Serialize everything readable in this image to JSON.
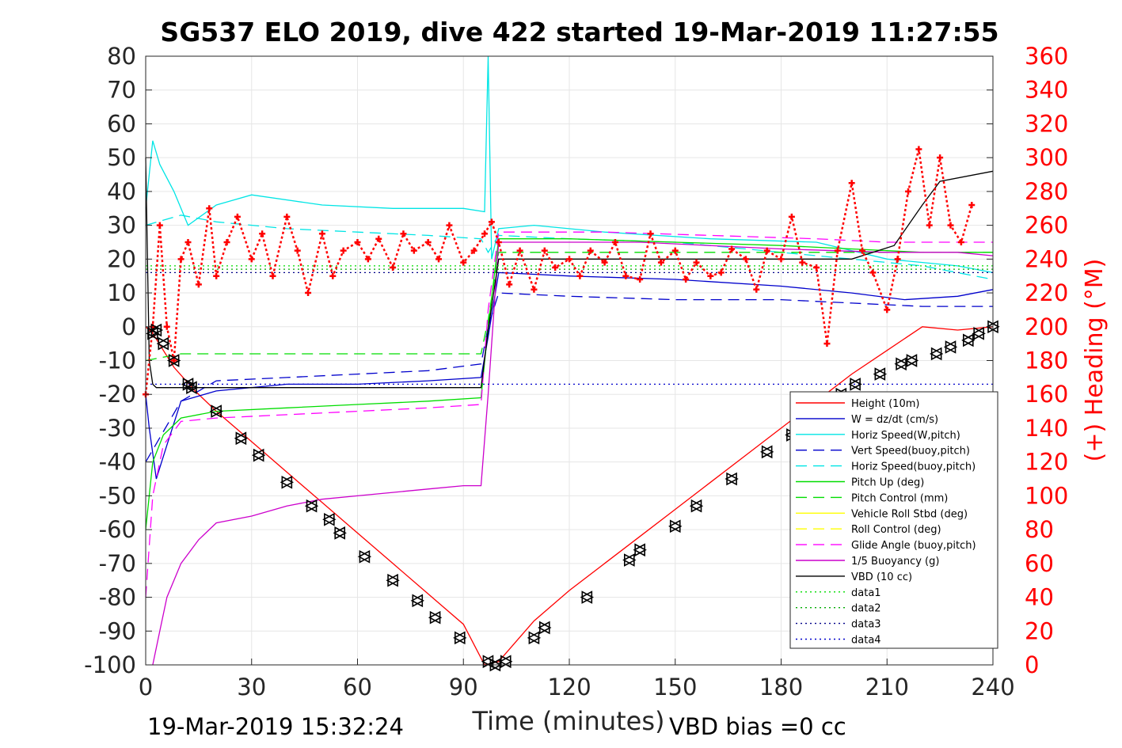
{
  "chart_data": {
    "type": "line",
    "title": "SG537 ELO 2019, dive 422 started 19-Mar-2019 11:27:55",
    "xlabel": "Time (minutes)",
    "ylabel": "",
    "y2label": "(+) Heading (°M)",
    "xlim": [
      0,
      240
    ],
    "ylim": [
      -100,
      80
    ],
    "y2lim": [
      0,
      360
    ],
    "xticks": [
      0,
      30,
      60,
      90,
      120,
      150,
      180,
      210,
      240
    ],
    "yticks": [
      -100,
      -90,
      -80,
      -70,
      -60,
      -50,
      -40,
      -30,
      -20,
      -10,
      0,
      10,
      20,
      30,
      40,
      50,
      60,
      70,
      80
    ],
    "y2ticks": [
      0,
      20,
      40,
      60,
      80,
      100,
      120,
      140,
      160,
      180,
      200,
      220,
      240,
      260,
      280,
      300,
      320,
      340,
      360
    ],
    "grid": true,
    "legend_position": "lower-right",
    "footer_left": "19-Mar-2019 15:32:24",
    "footer_right": "VBD bias =0 cc",
    "legend": [
      {
        "name": "Height (10m)",
        "color": "#ff0000",
        "dash": "solid"
      },
      {
        "name": "W = dz/dt (cm/s)",
        "color": "#0000cc",
        "dash": "solid"
      },
      {
        "name": "Horiz Speed(W,pitch)",
        "color": "#00e5e5",
        "dash": "solid"
      },
      {
        "name": "Vert Speed(buoy,pitch)",
        "color": "#0000cc",
        "dash": "dashed"
      },
      {
        "name": "Horiz Speed(buoy,pitch)",
        "color": "#00e5e5",
        "dash": "dashed"
      },
      {
        "name": "Pitch Up (deg)",
        "color": "#00dd00",
        "dash": "solid"
      },
      {
        "name": "Pitch Control (mm)",
        "color": "#00dd00",
        "dash": "dashed"
      },
      {
        "name": "Vehicle Roll Stbd (deg)",
        "color": "#ffff00",
        "dash": "solid"
      },
      {
        "name": "Roll Control (deg)",
        "color": "#ffff00",
        "dash": "dashed"
      },
      {
        "name": "Glide Angle (buoy,pitch)",
        "color": "#ff00ff",
        "dash": "dashed"
      },
      {
        "name": "1/5 Buoyancy (g)",
        "color": "#cc00cc",
        "dash": "solid"
      },
      {
        "name": "VBD (10 cc)",
        "color": "#000000",
        "dash": "solid"
      },
      {
        "name": "data1",
        "color": "#00dd00",
        "dash": "dotted"
      },
      {
        "name": "data2",
        "color": "#00aa00",
        "dash": "dotted"
      },
      {
        "name": "data3",
        "color": "#000088",
        "dash": "dotted"
      },
      {
        "name": "data4",
        "color": "#0000cc",
        "dash": "dotted"
      }
    ],
    "series": [
      {
        "name": "Height (10m)",
        "color": "#ff0000",
        "x": [
          0,
          2,
          8,
          14,
          20,
          30,
          40,
          50,
          60,
          70,
          80,
          90,
          96,
          100,
          110,
          120,
          130,
          140,
          150,
          160,
          170,
          180,
          190,
          200,
          210,
          220,
          230,
          240
        ],
        "y": [
          0,
          -2,
          -12,
          -19,
          -25,
          -34,
          -43,
          -52,
          -61,
          -70,
          -79,
          -88,
          -100,
          -99,
          -87,
          -78,
          -70,
          -62,
          -54,
          -46,
          -38,
          -30,
          -22,
          -14,
          -7,
          0,
          -1,
          0
        ]
      },
      {
        "name": "W = dz/dt (cm/s)",
        "color": "#0000cc",
        "x": [
          0,
          1,
          3,
          6,
          10,
          20,
          40,
          60,
          80,
          95,
          97,
          100,
          120,
          150,
          180,
          200,
          215,
          230,
          240
        ],
        "y": [
          -20,
          -30,
          -45,
          -35,
          -22,
          -19,
          -17,
          -17,
          -16,
          -15,
          -3,
          16,
          15,
          14,
          12,
          10,
          8,
          9,
          11
        ]
      },
      {
        "name": "Horiz Speed(W,pitch)",
        "color": "#00e5e5",
        "x": [
          0,
          2,
          4,
          8,
          12,
          20,
          30,
          50,
          70,
          90,
          96,
          97,
          98,
          100,
          110,
          130,
          160,
          190,
          210,
          230,
          240
        ],
        "y": [
          35,
          55,
          48,
          40,
          30,
          36,
          39,
          36,
          35,
          35,
          34,
          80,
          20,
          29,
          30,
          28,
          26,
          25,
          20,
          18,
          16
        ]
      },
      {
        "name": "Vert Speed(buoy,pitch)",
        "color": "#0000cc",
        "x": [
          0,
          10,
          20,
          40,
          60,
          80,
          95,
          97,
          100,
          120,
          150,
          180,
          200,
          220,
          240
        ],
        "y": [
          -40,
          -22,
          -16,
          -15,
          -14,
          -13,
          -11,
          0,
          10,
          9,
          8,
          8,
          7,
          6,
          6
        ]
      },
      {
        "name": "Horiz Speed(buoy,pitch)",
        "color": "#00e5e5",
        "x": [
          0,
          10,
          20,
          40,
          60,
          80,
          95,
          97,
          100,
          120,
          150,
          180,
          200,
          220,
          240
        ],
        "y": [
          30,
          33,
          31,
          29,
          28,
          27,
          26,
          22,
          27,
          26,
          25,
          22,
          20,
          18,
          14
        ]
      },
      {
        "name": "Pitch Up (deg)",
        "color": "#00dd00",
        "x": [
          0,
          2,
          5,
          10,
          20,
          40,
          60,
          80,
          95,
          97,
          100,
          120,
          150,
          180,
          200,
          220,
          240
        ],
        "y": [
          -60,
          -40,
          -32,
          -27,
          -25,
          -24,
          -23,
          -22,
          -21,
          0,
          26,
          26,
          25,
          24,
          23,
          22,
          22
        ]
      },
      {
        "name": "Pitch Control (mm)",
        "color": "#00dd00",
        "x": [
          0,
          10,
          30,
          60,
          95,
          97,
          100,
          150,
          200,
          240
        ],
        "y": [
          -10,
          -8,
          -8,
          -8,
          -8,
          2,
          22,
          22,
          22,
          22
        ]
      },
      {
        "name": "Glide Angle (buoy,pitch)",
        "color": "#ff00ff",
        "x": [
          0,
          2,
          5,
          10,
          20,
          40,
          60,
          80,
          95,
          97,
          100,
          130,
          160,
          190,
          210,
          230,
          240
        ],
        "y": [
          -80,
          -50,
          -35,
          -28,
          -27,
          -26,
          -25,
          -24,
          -23,
          5,
          28,
          28,
          27,
          26,
          25,
          25,
          25
        ]
      },
      {
        "name": "1/5 Buoyancy (g)",
        "color": "#cc00cc",
        "x": [
          2,
          4,
          6,
          10,
          15,
          20,
          30,
          40,
          50,
          60,
          70,
          80,
          90,
          95,
          97,
          100,
          140,
          180,
          210,
          230,
          240
        ],
        "y": [
          -100,
          -90,
          -80,
          -70,
          -63,
          -58,
          -56,
          -53,
          -51,
          -50,
          -49,
          -48,
          -47,
          -47,
          -20,
          25,
          25,
          23,
          22,
          22,
          21
        ]
      },
      {
        "name": "VBD (10 cc)",
        "color": "#000000",
        "x": [
          0,
          1,
          2,
          3,
          95,
          97,
          100,
          200,
          212,
          220,
          225,
          240
        ],
        "y": [
          50,
          -10,
          -17,
          -18,
          -18,
          -1,
          20,
          20,
          24,
          36,
          43,
          46
        ]
      },
      {
        "name": "data1",
        "color": "#00dd00",
        "x": [
          0,
          240
        ],
        "y": [
          18,
          18
        ]
      },
      {
        "name": "data2",
        "color": "#00aa00",
        "x": [
          0,
          240
        ],
        "y": [
          17,
          17
        ]
      },
      {
        "name": "data3",
        "color": "#000088",
        "x": [
          0,
          240
        ],
        "y": [
          16,
          16
        ]
      },
      {
        "name": "data4",
        "color": "#0000cc",
        "x": [
          0,
          240
        ],
        "y": [
          -17,
          -17
        ]
      }
    ],
    "heading_series": {
      "name": "(+) Heading (°M)",
      "color": "#ff0000",
      "axis": "right",
      "x": [
        0,
        2,
        4,
        6,
        8,
        10,
        12,
        15,
        18,
        20,
        23,
        26,
        30,
        33,
        36,
        40,
        43,
        46,
        50,
        53,
        56,
        60,
        63,
        66,
        70,
        73,
        76,
        80,
        83,
        86,
        90,
        93,
        96,
        98,
        100,
        103,
        106,
        110,
        113,
        116,
        120,
        123,
        126,
        130,
        133,
        136,
        140,
        143,
        146,
        150,
        153,
        156,
        160,
        163,
        166,
        170,
        173,
        176,
        180,
        183,
        186,
        190,
        193,
        196,
        200,
        203,
        206,
        210,
        213,
        216,
        219,
        222,
        225,
        228,
        231,
        234
      ],
      "y": [
        160,
        200,
        260,
        200,
        180,
        240,
        250,
        225,
        270,
        230,
        250,
        265,
        240,
        255,
        230,
        265,
        245,
        220,
        255,
        230,
        245,
        250,
        240,
        252,
        235,
        255,
        245,
        250,
        240,
        260,
        238,
        245,
        255,
        262,
        250,
        225,
        245,
        222,
        245,
        235,
        240,
        230,
        245,
        238,
        250,
        230,
        228,
        255,
        238,
        245,
        228,
        238,
        230,
        232,
        246,
        240,
        222,
        245,
        240,
        265,
        238,
        235,
        190,
        245,
        285,
        245,
        232,
        210,
        240,
        280,
        305,
        260,
        300,
        260,
        250,
        272
      ]
    },
    "dive_markers": {
      "symbol": "triangle",
      "color": "#000000",
      "x": [
        2,
        3,
        5,
        8,
        12,
        13,
        20,
        27,
        32,
        40,
        47,
        52,
        55,
        62,
        70,
        77,
        82,
        89,
        97,
        99,
        102,
        110,
        113,
        125,
        137,
        140,
        150,
        156,
        166,
        176,
        183,
        190,
        197,
        201,
        208,
        214,
        217,
        224,
        228,
        233,
        236,
        240
      ],
      "y": [
        -2,
        -1,
        -5,
        -10,
        -17,
        -18,
        -25,
        -33,
        -38,
        -46,
        -53,
        -57,
        -61,
        -68,
        -75,
        -81,
        -86,
        -92,
        -99,
        -100,
        -99,
        -92,
        -89,
        -80,
        -69,
        -66,
        -59,
        -53,
        -45,
        -37,
        -32,
        -26,
        -20,
        -17,
        -14,
        -11,
        -10,
        -8,
        -6,
        -4,
        -2,
        0
      ]
    }
  }
}
